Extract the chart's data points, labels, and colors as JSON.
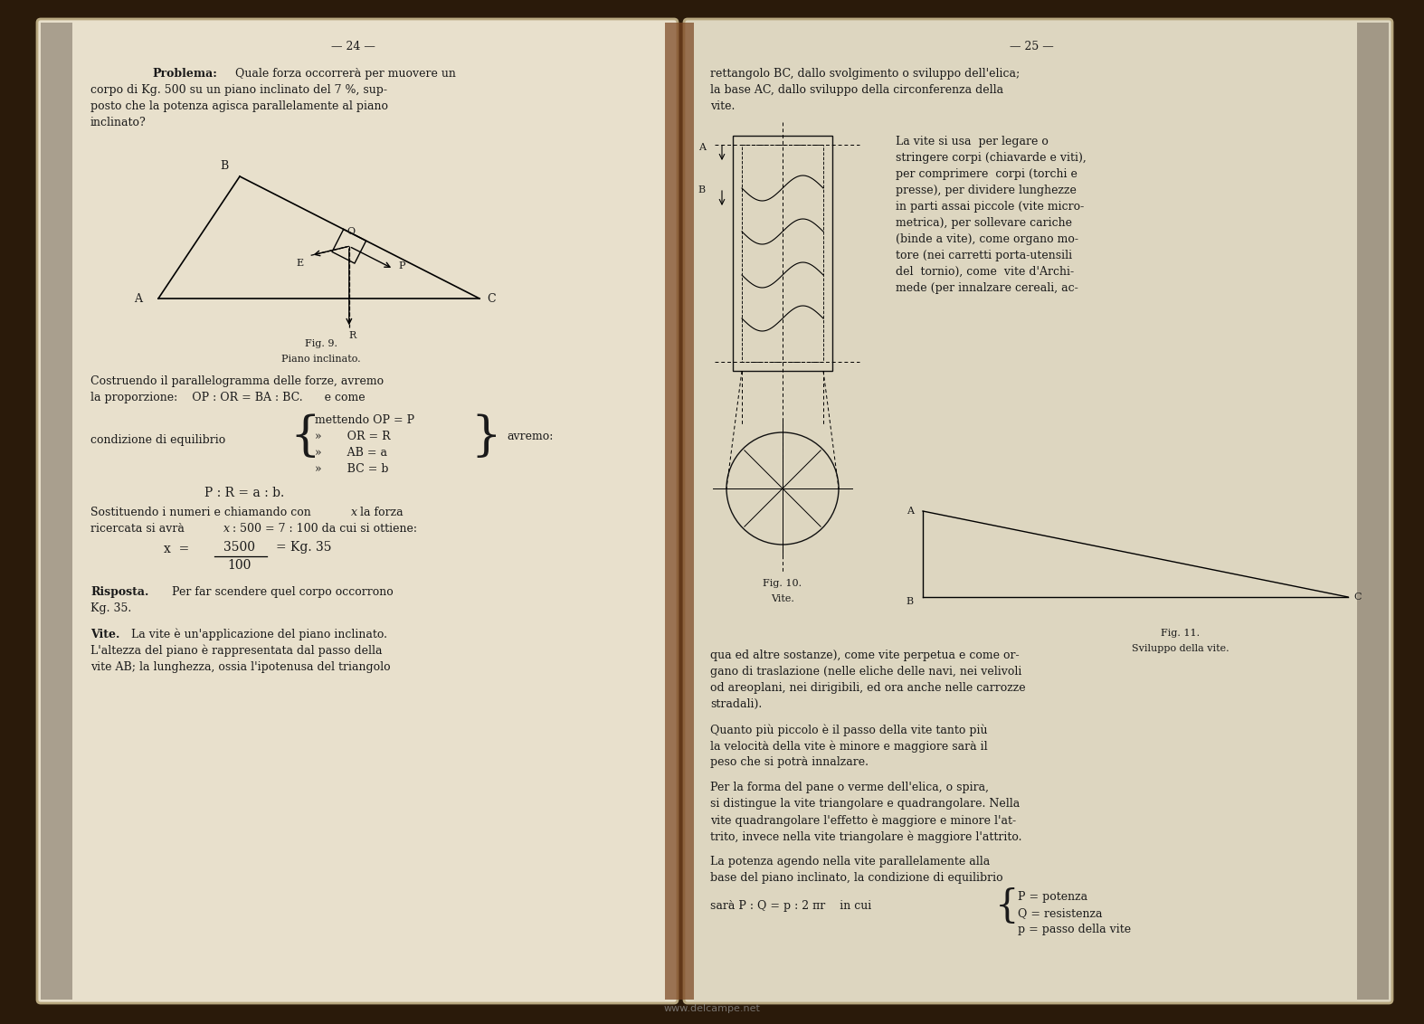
{
  "bg_color": "#2a1a0a",
  "left_page_color": "#e8e0cc",
  "right_page_color": "#ddd6c0",
  "spine_color": "#5a2a10",
  "text_color": "#1a1a1a",
  "watermark": "www.delcampe.net",
  "watermark_color": "#999999",
  "left_page_num": "— 24 —",
  "right_page_num": "— 25 —"
}
